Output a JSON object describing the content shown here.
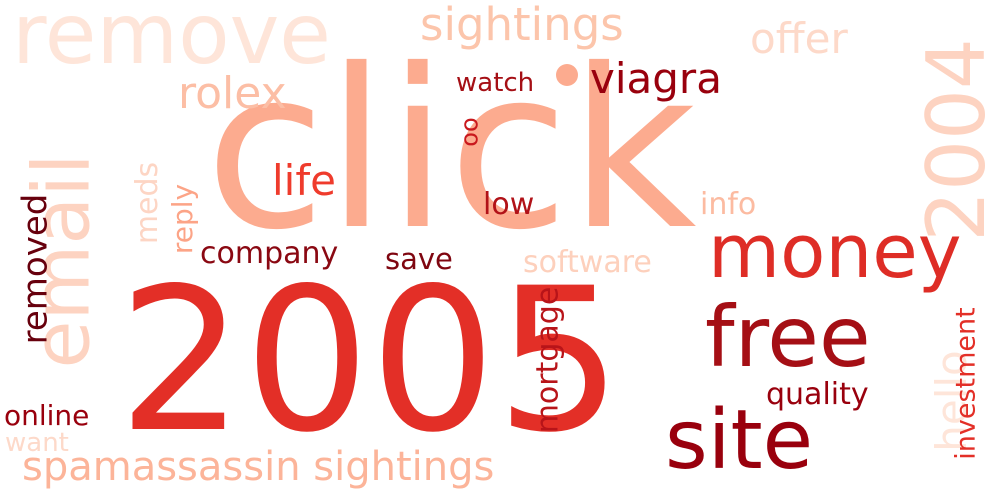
{
  "words": [
    {
      "key": "remove",
      "text": "remove",
      "color": "#fee5d9"
    },
    {
      "key": "sightings_top",
      "text": "sightings",
      "color": "#fcc5ab"
    },
    {
      "key": "offer",
      "text": "offer",
      "color": "#fdd9c9"
    },
    {
      "key": "n2004",
      "text": "2004",
      "color": "#fdd3c1"
    },
    {
      "key": "click",
      "text": "click",
      "color": "#fcab8f"
    },
    {
      "key": "email",
      "text": "email",
      "color": "#fdd3c1"
    },
    {
      "key": "rolex",
      "text": "rolex",
      "color": "#fcbea5"
    },
    {
      "key": "watch",
      "text": "watch",
      "color": "#a50f15"
    },
    {
      "key": "viagra",
      "text": "viagra",
      "color": "#99000d"
    },
    {
      "key": "oo",
      "text": "oo",
      "color": "#c9181d"
    },
    {
      "key": "meds",
      "text": "meds",
      "color": "#fdd5c4"
    },
    {
      "key": "reply",
      "text": "reply",
      "color": "#fca487"
    },
    {
      "key": "removed",
      "text": "removed",
      "color": "#67000d"
    },
    {
      "key": "life",
      "text": "life",
      "color": "#ef3b2c"
    },
    {
      "key": "low",
      "text": "low",
      "color": "#b11218"
    },
    {
      "key": "info",
      "text": "info",
      "color": "#fcbba1"
    },
    {
      "key": "company",
      "text": "company",
      "color": "#8a0812"
    },
    {
      "key": "save",
      "text": "save",
      "color": "#7f0610"
    },
    {
      "key": "money",
      "text": "money",
      "color": "#de2d26"
    },
    {
      "key": "software",
      "text": "software",
      "color": "#fdd0bc"
    },
    {
      "key": "n2005",
      "text": "2005",
      "color": "#e32f27"
    },
    {
      "key": "free",
      "text": "free",
      "color": "#a50f15"
    },
    {
      "key": "mortgage",
      "text": "mortgage",
      "color": "#b81419"
    },
    {
      "key": "hello",
      "text": "hello",
      "color": "#fee5d9"
    },
    {
      "key": "investment",
      "text": "investment",
      "color": "#e32f27"
    },
    {
      "key": "quality",
      "text": "quality",
      "color": "#99000d"
    },
    {
      "key": "online",
      "text": "online",
      "color": "#99000d"
    },
    {
      "key": "want",
      "text": "want",
      "color": "#fdd9c9"
    },
    {
      "key": "site",
      "text": "site",
      "color": "#99000d"
    },
    {
      "key": "spamassassin_sightings",
      "text": "spamassassin sightings",
      "color": "#fcb499"
    }
  ]
}
